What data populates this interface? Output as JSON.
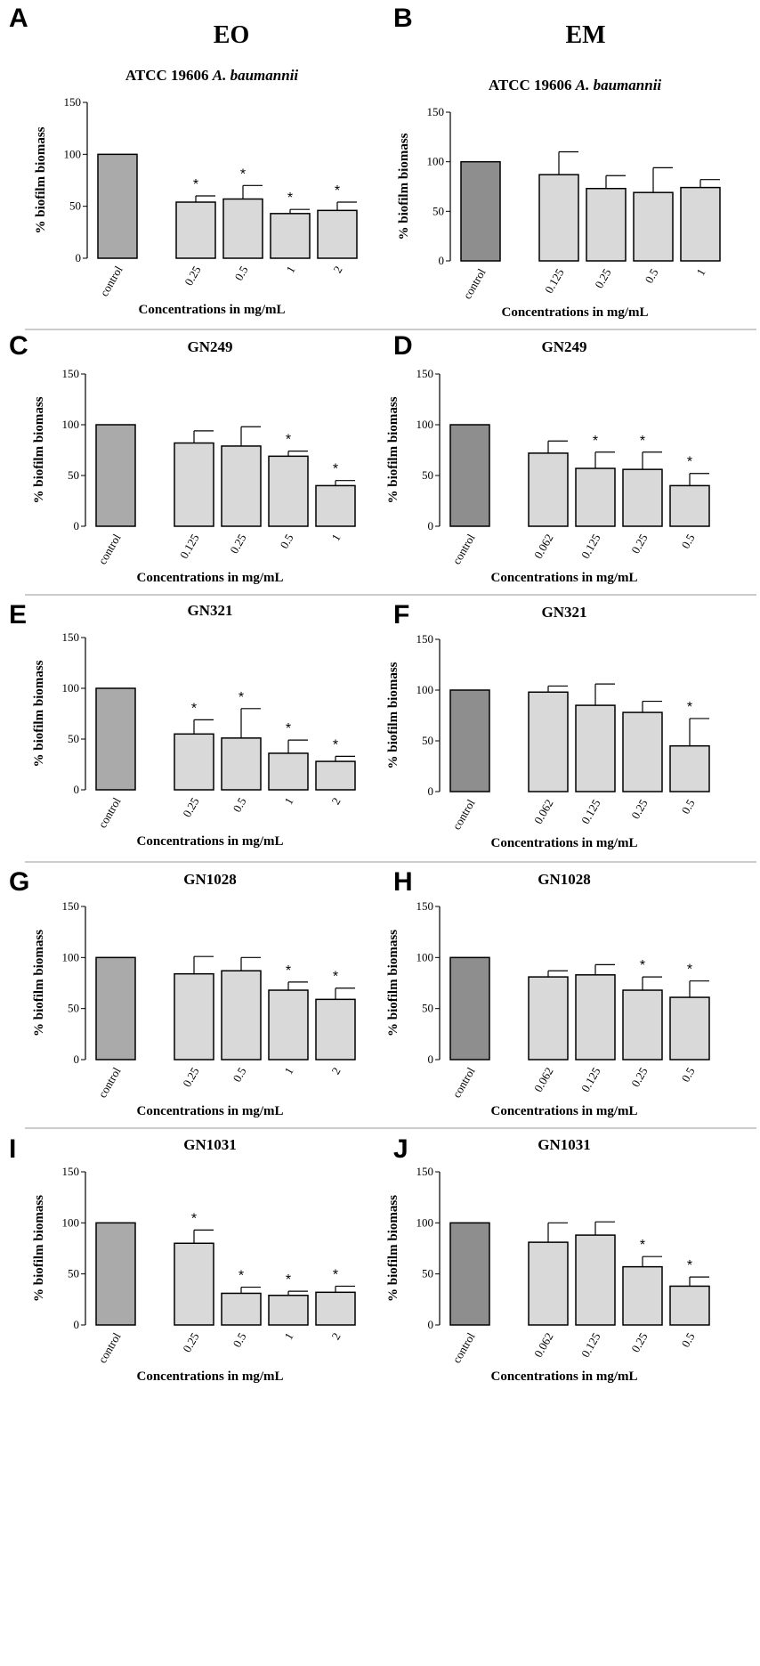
{
  "column_headings": [
    "EO",
    "EM"
  ],
  "colors": {
    "control_eo": "#aaaaaa",
    "control_em": "#8e8e8e",
    "treatment": "#d9d9d9",
    "stroke": "#000000",
    "separator": "#999999"
  },
  "chart_data": [
    {
      "panel": "A",
      "type": "bar",
      "title": "ATCC 19606 A. baumannii",
      "title_plain": "ATCC 19606 ",
      "title_italic": "A. baumannii",
      "xlabel": "Concentrations in mg/mL",
      "ylabel": "% biofilm biomass",
      "ylim": [
        0,
        150
      ],
      "yticks": [
        0,
        50,
        100,
        150
      ],
      "categories": [
        "control",
        "0.25",
        "0.5",
        "1",
        "2"
      ],
      "values": [
        100,
        54,
        57,
        43,
        46
      ],
      "errors": [
        0,
        6,
        13,
        4,
        8
      ],
      "significant": [
        false,
        true,
        true,
        true,
        true
      ]
    },
    {
      "panel": "B",
      "type": "bar",
      "title": "ATCC 19606 A. baumannii",
      "title_plain": "ATCC 19606 ",
      "title_italic": "A. baumannii",
      "xlabel": "Concentrations in mg/mL",
      "ylabel": "% biofilm biomass",
      "ylim": [
        0,
        150
      ],
      "yticks": [
        0,
        50,
        100,
        150
      ],
      "categories": [
        "control",
        "0.125",
        "0.25",
        "0.5",
        "1"
      ],
      "values": [
        100,
        87,
        73,
        69,
        74
      ],
      "errors": [
        0,
        23,
        13,
        25,
        8
      ],
      "significant": [
        false,
        false,
        false,
        false,
        false
      ]
    },
    {
      "panel": "C",
      "type": "bar",
      "title": "GN249",
      "xlabel": "Concentrations in mg/mL",
      "ylabel": "% biofilm biomass",
      "ylim": [
        0,
        150
      ],
      "yticks": [
        0,
        50,
        100,
        150
      ],
      "categories": [
        "control",
        "0.125",
        "0.25",
        "0.5",
        "1"
      ],
      "values": [
        100,
        82,
        79,
        69,
        40
      ],
      "errors": [
        0,
        12,
        19,
        5,
        5
      ],
      "significant": [
        false,
        false,
        false,
        true,
        true
      ]
    },
    {
      "panel": "D",
      "type": "bar",
      "title": "GN249",
      "xlabel": "Concentrations in mg/mL",
      "ylabel": "% biofilm biomass",
      "ylim": [
        0,
        150
      ],
      "yticks": [
        0,
        50,
        100,
        150
      ],
      "categories": [
        "control",
        "0.062",
        "0.125",
        "0.25",
        "0.5"
      ],
      "values": [
        100,
        72,
        57,
        56,
        40
      ],
      "errors": [
        0,
        12,
        16,
        17,
        12
      ],
      "significant": [
        false,
        false,
        true,
        true,
        true
      ]
    },
    {
      "panel": "E",
      "type": "bar",
      "title": "GN321",
      "xlabel": "Concentrations in mg/mL",
      "ylabel": "% biofilm biomass",
      "ylim": [
        0,
        150
      ],
      "yticks": [
        0,
        50,
        100,
        150
      ],
      "categories": [
        "control",
        "0.25",
        "0.5",
        "1",
        "2"
      ],
      "values": [
        100,
        55,
        51,
        36,
        28
      ],
      "errors": [
        0,
        14,
        29,
        13,
        5
      ],
      "significant": [
        false,
        true,
        true,
        true,
        true
      ]
    },
    {
      "panel": "F",
      "type": "bar",
      "title": "GN321",
      "xlabel": "Concentrations in mg/mL",
      "ylabel": "% biofilm biomass",
      "ylim": [
        0,
        150
      ],
      "yticks": [
        0,
        50,
        100,
        150
      ],
      "categories": [
        "control",
        "0.062",
        "0.125",
        "0.25",
        "0.5"
      ],
      "values": [
        100,
        98,
        85,
        78,
        45
      ],
      "errors": [
        0,
        6,
        21,
        11,
        27
      ],
      "significant": [
        false,
        false,
        false,
        false,
        true
      ]
    },
    {
      "panel": "G",
      "type": "bar",
      "title": "GN1028",
      "xlabel": "Concentrations in mg/mL",
      "ylabel": "% biofilm biomass",
      "ylim": [
        0,
        150
      ],
      "yticks": [
        0,
        50,
        100,
        150
      ],
      "categories": [
        "control",
        "0.25",
        "0.5",
        "1",
        "2"
      ],
      "values": [
        100,
        84,
        87,
        68,
        59
      ],
      "errors": [
        0,
        17,
        13,
        8,
        11
      ],
      "significant": [
        false,
        false,
        false,
        true,
        true
      ]
    },
    {
      "panel": "H",
      "type": "bar",
      "title": "GN1028",
      "xlabel": "Concentrations in mg/mL",
      "ylabel": "% biofilm biomass",
      "ylim": [
        0,
        150
      ],
      "yticks": [
        0,
        50,
        100,
        150
      ],
      "categories": [
        "control",
        "0.062",
        "0.125",
        "0.25",
        "0.5"
      ],
      "values": [
        100,
        81,
        83,
        68,
        61
      ],
      "errors": [
        0,
        6,
        10,
        13,
        16
      ],
      "significant": [
        false,
        false,
        false,
        true,
        true
      ]
    },
    {
      "panel": "I",
      "type": "bar",
      "title": "GN1031",
      "xlabel": "Concentrations in mg/mL",
      "ylabel": "% biofilm biomass",
      "ylim": [
        0,
        150
      ],
      "yticks": [
        0,
        50,
        100,
        150
      ],
      "categories": [
        "control",
        "0.25",
        "0.5",
        "1",
        "2"
      ],
      "values": [
        100,
        80,
        31,
        29,
        32
      ],
      "errors": [
        0,
        13,
        6,
        4,
        6
      ],
      "significant": [
        false,
        true,
        true,
        true,
        true
      ]
    },
    {
      "panel": "J",
      "type": "bar",
      "title": "GN1031",
      "xlabel": "Concentrations in mg/mL",
      "ylabel": "% biofilm biomass",
      "ylim": [
        0,
        150
      ],
      "yticks": [
        0,
        50,
        100,
        150
      ],
      "categories": [
        "control",
        "0.062",
        "0.125",
        "0.25",
        "0.5"
      ],
      "values": [
        100,
        81,
        88,
        57,
        38
      ],
      "errors": [
        0,
        19,
        13,
        10,
        9
      ],
      "significant": [
        false,
        false,
        false,
        true,
        true
      ]
    }
  ]
}
